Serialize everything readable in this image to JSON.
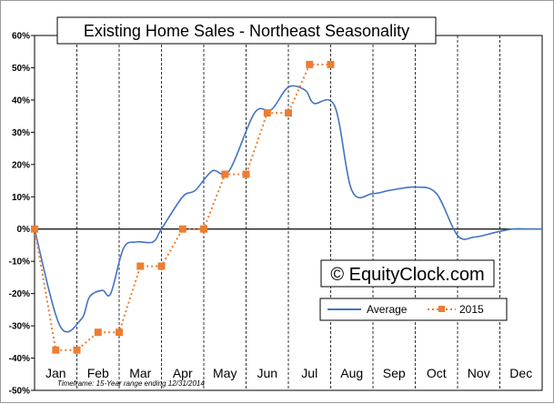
{
  "chart_data": {
    "type": "line",
    "title": "Existing Home Sales - Northeast Seasonality",
    "watermark": "© EquityClock.com",
    "footnote": "Timeframe: 15-Year range ending 12/31/2014",
    "categories": [
      "Jan",
      "Feb",
      "Mar",
      "Apr",
      "May",
      "Jun",
      "Jul",
      "Aug",
      "Sep",
      "Oct",
      "Nov",
      "Dec"
    ],
    "ylim": [
      -0.5,
      0.6
    ],
    "yticks": [
      -0.5,
      -0.4,
      -0.3,
      -0.2,
      -0.1,
      0,
      0.1,
      0.2,
      0.3,
      0.4,
      0.5,
      0.6
    ],
    "ytick_labels": [
      "-50%",
      "-40%",
      "-30%",
      "-20%",
      "-10%",
      "0%",
      "10%",
      "20%",
      "30%",
      "40%",
      "50%",
      "60%"
    ],
    "grid": "vertical-dashed",
    "legend_position": "bottom-right",
    "series": [
      {
        "name": "Average",
        "color": "#4472c4",
        "style": "solid",
        "x": [
          0.0,
          0.6,
          1.1,
          1.3,
          1.6,
          1.8,
          2.1,
          2.4,
          2.8,
          3.0,
          3.5,
          3.8,
          4.2,
          4.6,
          5.2,
          5.6,
          6.0,
          6.4,
          6.6,
          7.1,
          7.5,
          8.0,
          8.4,
          9.0,
          9.5,
          10.0,
          10.4,
          10.9,
          11.3,
          11.7,
          12.0
        ],
        "values": [
          0.0,
          -0.3,
          -0.28,
          -0.21,
          -0.19,
          -0.2,
          -0.06,
          -0.04,
          -0.04,
          0.0,
          0.1,
          0.12,
          0.18,
          0.18,
          0.36,
          0.37,
          0.44,
          0.43,
          0.39,
          0.38,
          0.12,
          0.11,
          0.12,
          0.13,
          0.11,
          -0.02,
          -0.025,
          -0.01,
          0.0,
          0.0,
          0.0
        ]
      },
      {
        "name": "2015",
        "color": "#ed7d31",
        "style": "dotted",
        "marker": "square",
        "x": [
          0,
          0.5,
          1.0,
          1.5,
          2.0,
          2.5,
          3.0,
          3.5,
          4.0,
          4.5,
          5.0,
          5.5,
          6.0,
          6.5,
          7.0
        ],
        "values": [
          0.0,
          -0.375,
          -0.375,
          -0.32,
          -0.32,
          -0.115,
          -0.115,
          0.0,
          0.0,
          0.17,
          0.17,
          0.36,
          0.36,
          0.51,
          0.51
        ]
      }
    ]
  }
}
